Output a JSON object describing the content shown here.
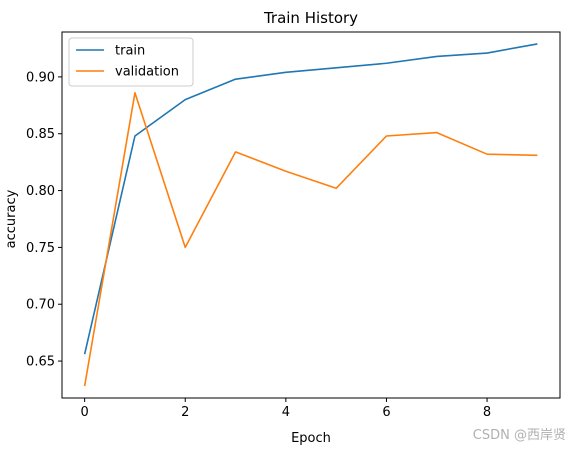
{
  "chart_data": {
    "type": "line",
    "title": "Train History",
    "xlabel": "Epoch",
    "ylabel": "accuracy",
    "x": [
      0,
      1,
      2,
      3,
      4,
      5,
      6,
      7,
      8,
      9
    ],
    "xlim": [
      -0.45,
      9.45
    ],
    "ylim": [
      0.6175,
      0.9395
    ],
    "xticks": [
      "0",
      "2",
      "4",
      "6",
      "8"
    ],
    "yticks": [
      "0.65",
      "0.70",
      "0.75",
      "0.80",
      "0.85",
      "0.90"
    ],
    "grid": false,
    "legend_position": "upper-left",
    "series": [
      {
        "name": "train",
        "color": "#1f77b4",
        "values": [
          0.656,
          0.848,
          0.88,
          0.898,
          0.904,
          0.908,
          0.912,
          0.918,
          0.921,
          0.929
        ]
      },
      {
        "name": "validation",
        "color": "#ff7f0e",
        "values": [
          0.628,
          0.886,
          0.75,
          0.834,
          0.817,
          0.802,
          0.848,
          0.851,
          0.832,
          0.831
        ]
      }
    ]
  },
  "watermark": "CSDN @西岸贤"
}
